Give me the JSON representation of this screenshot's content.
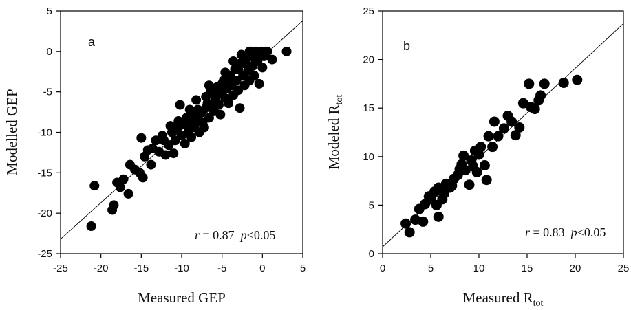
{
  "chart_data": [
    {
      "id": "a",
      "type": "scatter",
      "panel_label": "a",
      "xlabel": "Measured GEP",
      "ylabel": "Modelled GEP",
      "xlim": [
        -25,
        5
      ],
      "ylim": [
        -25,
        5
      ],
      "xticks": [
        -25,
        -20,
        -15,
        -10,
        -5,
        0,
        5
      ],
      "yticks": [
        -25,
        -20,
        -15,
        -10,
        -5,
        0,
        5
      ],
      "tick_labels_x": [
        "-25",
        "-20",
        "-15",
        "-10",
        "-5",
        "0",
        "5"
      ],
      "tick_labels_y": [
        "-25",
        "-20",
        "-15",
        "-10",
        "-5",
        "0",
        "5"
      ],
      "grid": false,
      "fit_line": {
        "x": [
          -25,
          5
        ],
        "y": [
          -23.2,
          3.8
        ]
      },
      "annotation": {
        "r_symbol": "r",
        "r_text": " = 0.87  ",
        "p_symbol": "p",
        "p_text": "<0.05"
      },
      "points": [
        [
          -21.2,
          -21.6
        ],
        [
          -20.8,
          -16.6
        ],
        [
          -18.6,
          -19.6
        ],
        [
          -18.4,
          -19.0
        ],
        [
          -18.0,
          -16.2
        ],
        [
          -17.6,
          -16.8
        ],
        [
          -17.2,
          -15.8
        ],
        [
          -16.6,
          -17.6
        ],
        [
          -16.4,
          -14.0
        ],
        [
          -15.8,
          -14.6
        ],
        [
          -15.2,
          -15.0
        ],
        [
          -14.8,
          -15.6
        ],
        [
          -15.0,
          -10.7
        ],
        [
          -14.6,
          -13.0
        ],
        [
          -14.2,
          -12.2
        ],
        [
          -13.8,
          -14.0
        ],
        [
          -13.2,
          -11.0
        ],
        [
          -12.8,
          -12.4
        ],
        [
          -12.4,
          -10.4
        ],
        [
          -12.0,
          -12.8
        ],
        [
          -11.6,
          -11.6
        ],
        [
          -11.2,
          -10.0
        ],
        [
          -11.0,
          -12.6
        ],
        [
          -10.8,
          -11.0
        ],
        [
          -10.6,
          -9.6
        ],
        [
          -10.2,
          -6.6
        ],
        [
          -10.0,
          -10.4
        ],
        [
          -9.8,
          -9.0
        ],
        [
          -9.6,
          -11.4
        ],
        [
          -9.4,
          -8.2
        ],
        [
          -9.2,
          -10.0
        ],
        [
          -9.0,
          -9.0
        ],
        [
          -8.8,
          -10.6
        ],
        [
          -8.6,
          -8.0
        ],
        [
          -8.4,
          -9.4
        ],
        [
          -8.2,
          -6.0
        ],
        [
          -8.0,
          -8.6
        ],
        [
          -7.8,
          -10.0
        ],
        [
          -7.6,
          -7.6
        ],
        [
          -7.4,
          -8.8
        ],
        [
          -7.2,
          -9.4
        ],
        [
          -7.0,
          -7.0
        ],
        [
          -6.8,
          -6.4
        ],
        [
          -6.6,
          -8.2
        ],
        [
          -6.4,
          -5.0
        ],
        [
          -6.2,
          -6.8
        ],
        [
          -6.0,
          -7.4
        ],
        [
          -5.8,
          -5.8
        ],
        [
          -5.6,
          -4.4
        ],
        [
          -5.4,
          -6.6
        ],
        [
          -5.2,
          -7.8
        ],
        [
          -5.0,
          -5.2
        ],
        [
          -4.8,
          -3.6
        ],
        [
          -4.6,
          -5.8
        ],
        [
          -4.4,
          -4.6
        ],
        [
          -4.2,
          -6.4
        ],
        [
          -4.0,
          -3.0
        ],
        [
          -3.8,
          -4.2
        ],
        [
          -3.6,
          -5.4
        ],
        [
          -3.4,
          -2.2
        ],
        [
          -3.2,
          -3.6
        ],
        [
          -3.0,
          -4.8
        ],
        [
          -2.8,
          -7.0
        ],
        [
          -2.6,
          -1.4
        ],
        [
          -2.4,
          -3.0
        ],
        [
          -2.2,
          -4.2
        ],
        [
          -2.0,
          -0.8
        ],
        [
          -1.8,
          -2.4
        ],
        [
          -1.6,
          -3.6
        ],
        [
          -1.4,
          0.0
        ],
        [
          -1.2,
          -1.8
        ],
        [
          -1.0,
          -3.0
        ],
        [
          -0.8,
          0.0
        ],
        [
          -0.6,
          -1.2
        ],
        [
          -0.4,
          -4.0
        ],
        [
          -0.2,
          0.0
        ],
        [
          0.0,
          -2.0
        ],
        [
          0.2,
          -0.6
        ],
        [
          0.6,
          0.0
        ],
        [
          1.2,
          -1.0
        ],
        [
          3.0,
          0.0
        ],
        [
          -13.6,
          -12.0
        ],
        [
          -11.4,
          -9.2
        ],
        [
          -9.0,
          -7.2
        ],
        [
          -7.0,
          -5.6
        ],
        [
          -5.0,
          -4.0
        ],
        [
          -3.0,
          -2.2
        ],
        [
          -2.0,
          -1.6
        ],
        [
          -1.0,
          -0.8
        ],
        [
          0.4,
          0.0
        ],
        [
          -8.0,
          -7.2
        ],
        [
          -6.0,
          -5.0
        ],
        [
          -4.0,
          -3.6
        ],
        [
          -2.6,
          -0.4
        ],
        [
          -1.6,
          0.0
        ],
        [
          -3.6,
          -1.2
        ],
        [
          -4.6,
          -2.6
        ],
        [
          -6.6,
          -4.2
        ],
        [
          -10.4,
          -8.6
        ],
        [
          -12.2,
          -11.0
        ]
      ]
    },
    {
      "id": "b",
      "type": "scatter",
      "panel_label": "b",
      "xlabel_main": "Measured R",
      "xlabel_sub": "tot",
      "ylabel_main": "Modeled R",
      "ylabel_sub": "tot",
      "xlim": [
        0,
        25
      ],
      "ylim": [
        0,
        25
      ],
      "xticks": [
        0,
        5,
        10,
        15,
        20,
        25
      ],
      "yticks": [
        0,
        5,
        10,
        15,
        20,
        25
      ],
      "tick_labels_x": [
        "0",
        "5",
        "10",
        "15",
        "20",
        "25"
      ],
      "tick_labels_y": [
        "0",
        "5",
        "10",
        "15",
        "20",
        "25"
      ],
      "grid": false,
      "fit_line": {
        "x": [
          0,
          25
        ],
        "y": [
          0.7,
          23.7
        ]
      },
      "annotation": {
        "r_symbol": "r",
        "r_text": " = 0.83  ",
        "p_symbol": "p",
        "p_text": "<0.05"
      },
      "points": [
        [
          2.4,
          3.1
        ],
        [
          2.8,
          2.2
        ],
        [
          3.4,
          3.5
        ],
        [
          3.8,
          4.6
        ],
        [
          4.2,
          3.3
        ],
        [
          4.4,
          5.1
        ],
        [
          5.0,
          5.6
        ],
        [
          5.4,
          6.4
        ],
        [
          5.6,
          5.0
        ],
        [
          5.8,
          3.8
        ],
        [
          5.8,
          6.8
        ],
        [
          6.2,
          5.6
        ],
        [
          6.6,
          7.2
        ],
        [
          7.0,
          6.8
        ],
        [
          7.4,
          7.7
        ],
        [
          7.8,
          8.1
        ],
        [
          8.2,
          9.2
        ],
        [
          8.4,
          10.1
        ],
        [
          8.6,
          8.6
        ],
        [
          9.0,
          7.1
        ],
        [
          9.2,
          9.6
        ],
        [
          9.6,
          10.6
        ],
        [
          9.8,
          8.4
        ],
        [
          10.2,
          11.0
        ],
        [
          10.6,
          9.1
        ],
        [
          10.8,
          7.6
        ],
        [
          11.0,
          12.1
        ],
        [
          11.4,
          11.0
        ],
        [
          11.6,
          13.6
        ],
        [
          12.0,
          12.1
        ],
        [
          12.6,
          12.9
        ],
        [
          13.0,
          14.2
        ],
        [
          13.4,
          13.6
        ],
        [
          13.8,
          12.2
        ],
        [
          14.2,
          13.0
        ],
        [
          14.6,
          15.5
        ],
        [
          15.2,
          17.5
        ],
        [
          15.4,
          15.1
        ],
        [
          15.8,
          14.9
        ],
        [
          16.2,
          15.8
        ],
        [
          16.4,
          16.3
        ],
        [
          16.8,
          17.5
        ],
        [
          18.8,
          17.6
        ],
        [
          20.2,
          17.9
        ],
        [
          6.4,
          6.2
        ],
        [
          7.2,
          7.0
        ],
        [
          8.0,
          8.7
        ],
        [
          9.4,
          9.0
        ],
        [
          10.0,
          10.2
        ],
        [
          4.8,
          5.9
        ]
      ]
    }
  ]
}
